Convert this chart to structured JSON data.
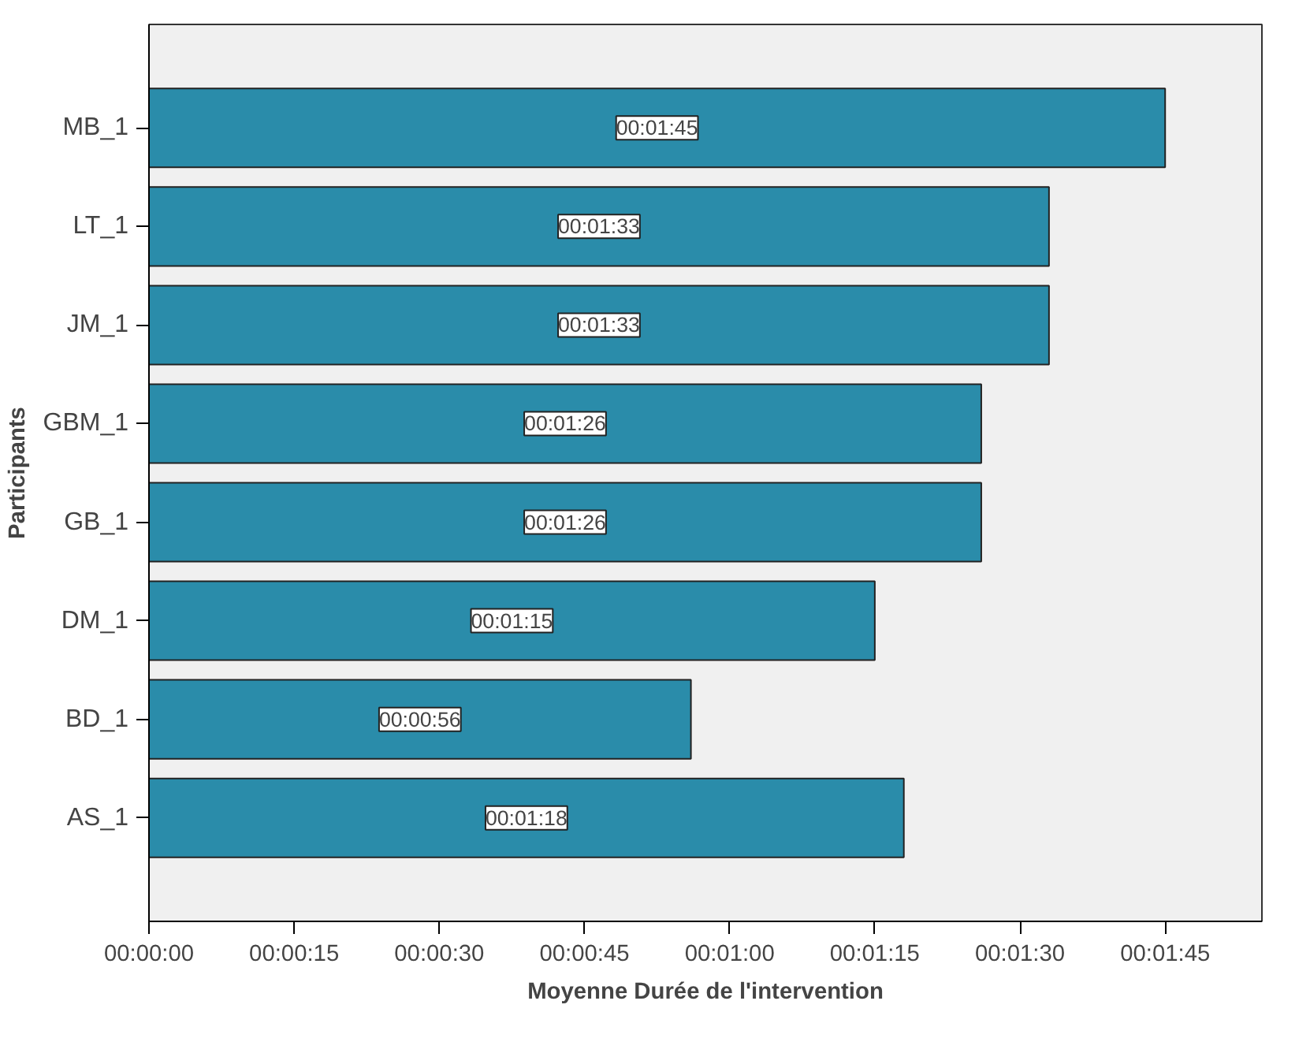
{
  "chart_data": {
    "type": "bar",
    "orientation": "horizontal",
    "xlabel": "Moyenne Durée de l'intervention",
    "ylabel": "Participants",
    "categories": [
      "MB_1",
      "LT_1",
      "JM_1",
      "GBM_1",
      "GB_1",
      "DM_1",
      "BD_1",
      "AS_1"
    ],
    "values": [
      105,
      93,
      93,
      86,
      86,
      75,
      56,
      78
    ],
    "value_labels": [
      "00:01:45",
      "00:01:33",
      "00:01:33",
      "00:01:26",
      "00:01:26",
      "00:01:15",
      "00:00:56",
      "00:01:18"
    ],
    "color": "#2a8caa",
    "xlim": [
      0,
      115
    ],
    "xticks": [
      {
        "value": 0,
        "label": "00:00:00"
      },
      {
        "value": 15,
        "label": "00:00:15"
      },
      {
        "value": 30,
        "label": "00:00:30"
      },
      {
        "value": 45,
        "label": "00:00:45"
      },
      {
        "value": 60,
        "label": "00:01:00"
      },
      {
        "value": 75,
        "label": "00:01:15"
      },
      {
        "value": 90,
        "label": "00:01:30"
      },
      {
        "value": 105,
        "label": "00:01:45"
      }
    ],
    "grid": false
  }
}
